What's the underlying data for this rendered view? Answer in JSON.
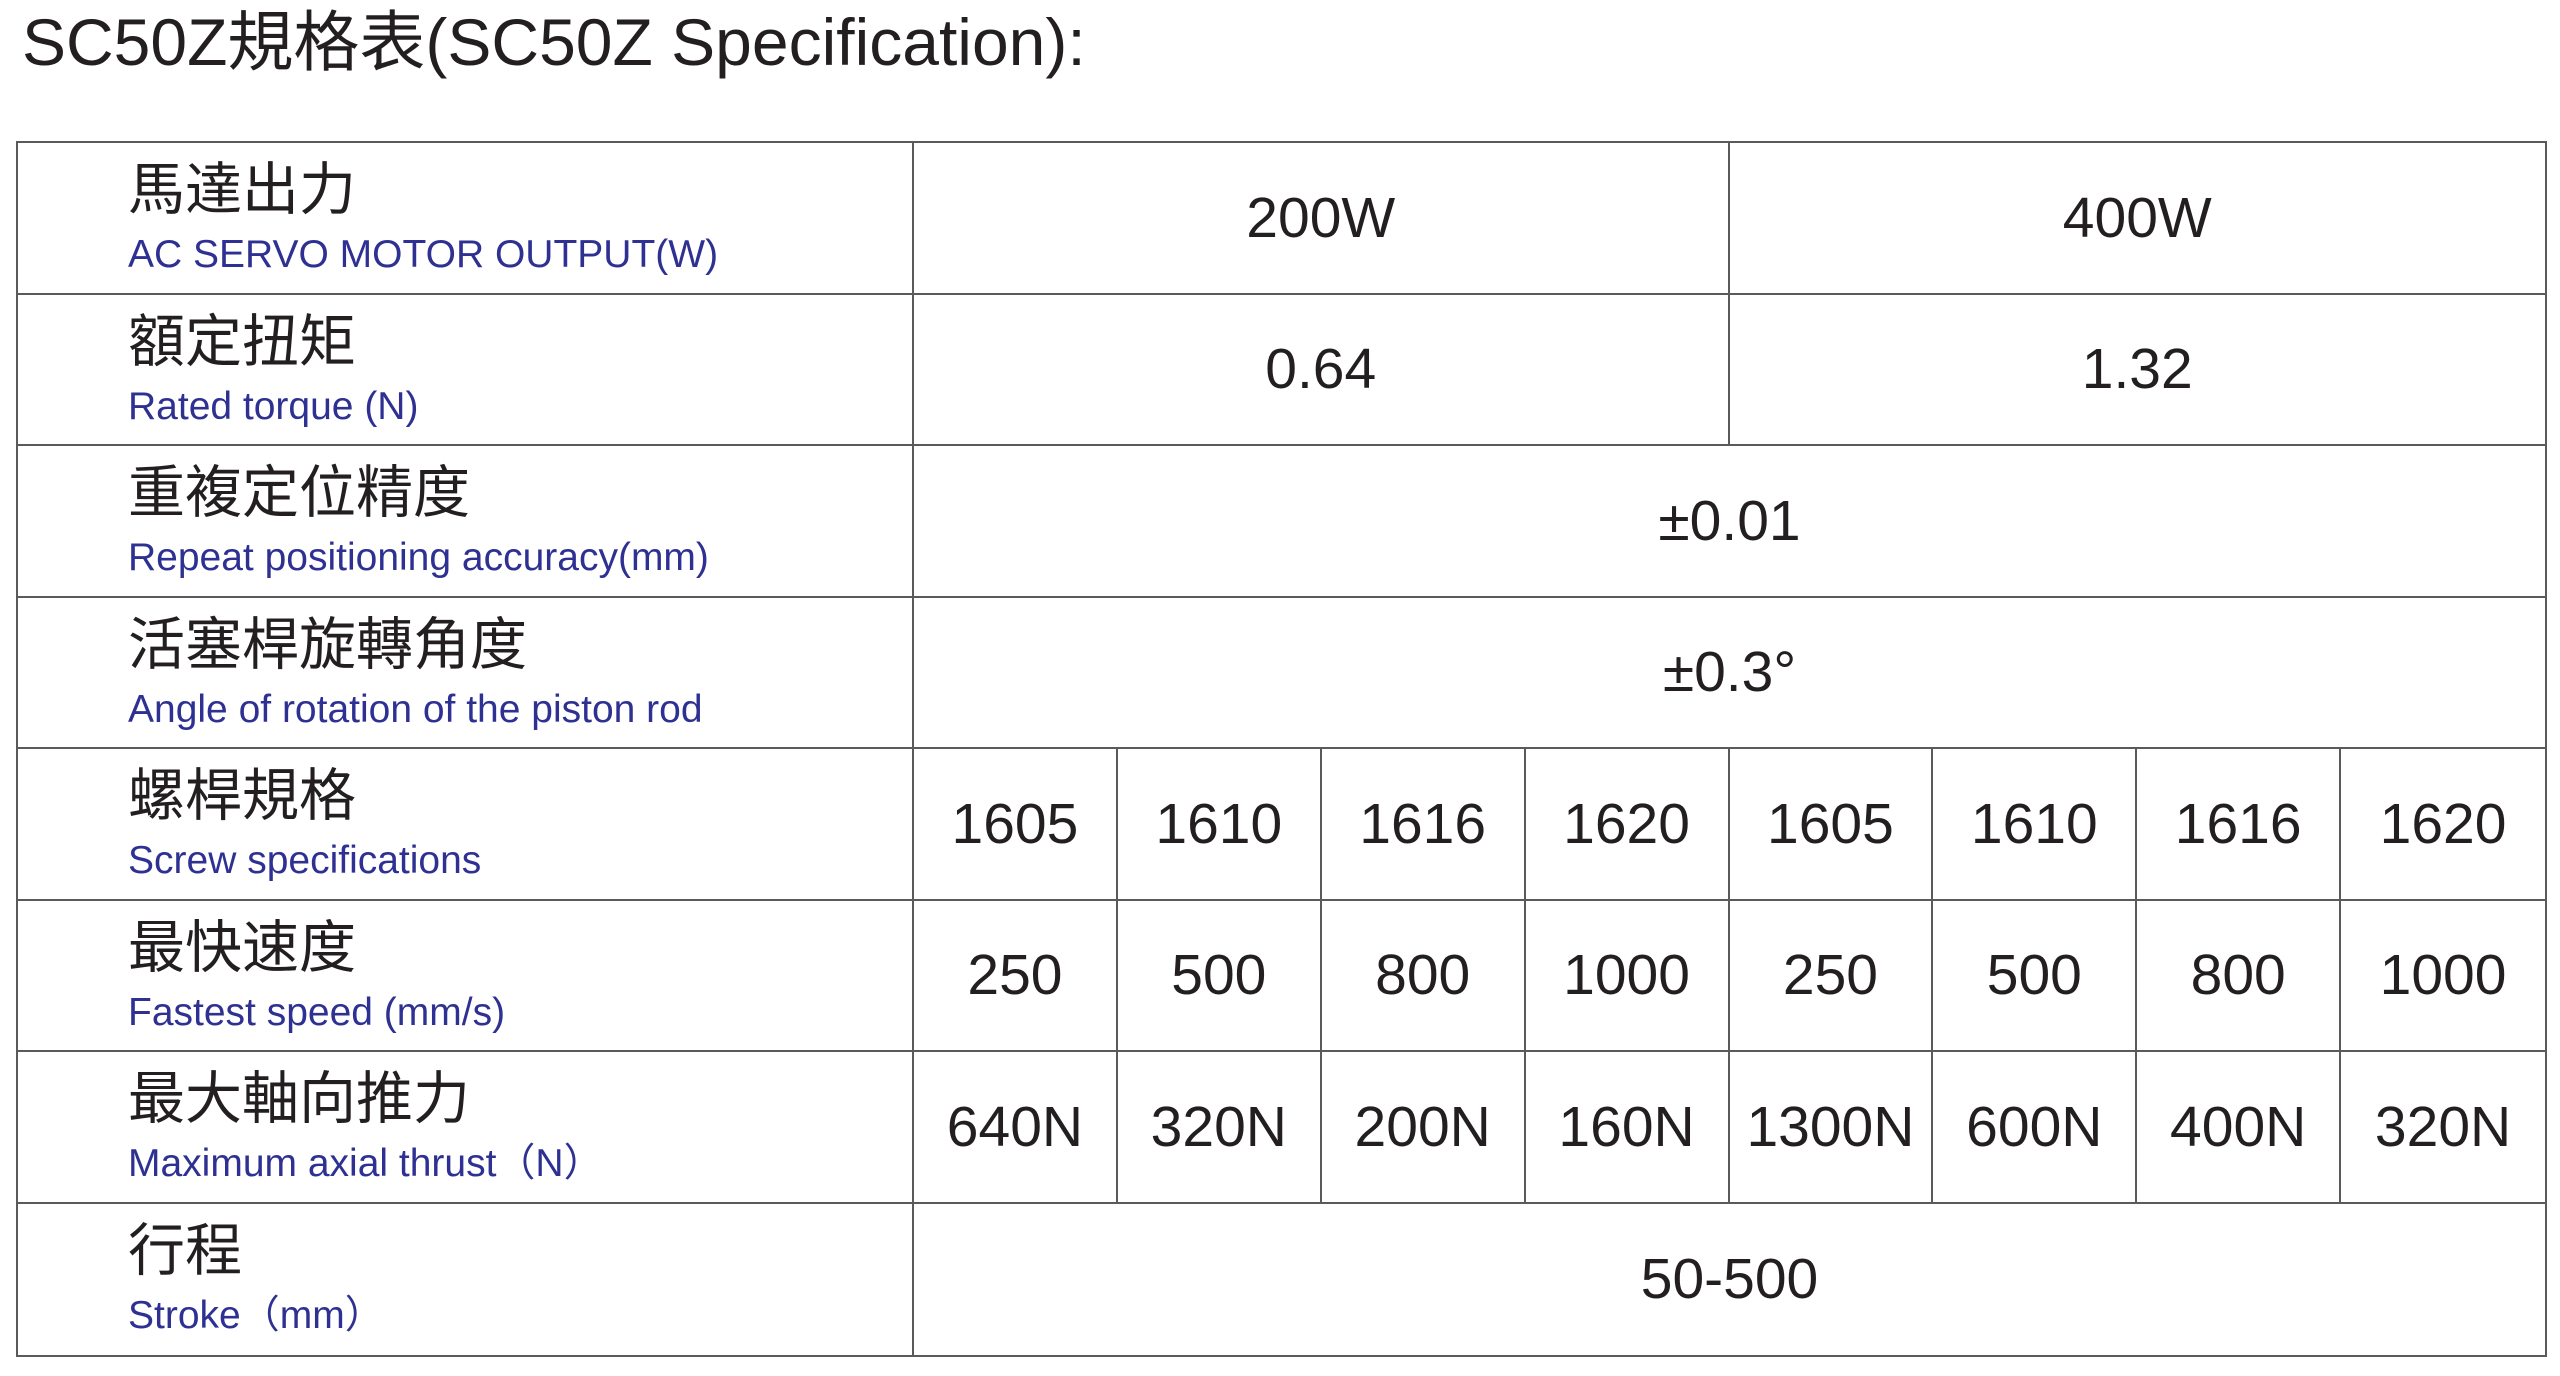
{
  "title": "SC50Z規格表(SC50Z Specification):",
  "table": {
    "rows": [
      {
        "zh": "馬達出力",
        "en": "AC SERVO MOTOR OUTPUT(W)",
        "values": [
          "200W",
          "400W"
        ]
      },
      {
        "zh": "額定扭矩",
        "en": "Rated torque  (N)",
        "values": [
          "0.64",
          "1.32"
        ]
      },
      {
        "zh": "重複定位精度",
        "en": "Repeat positioning accuracy(mm)",
        "values": [
          "±0.01"
        ]
      },
      {
        "zh": "活塞桿旋轉角度",
        "en": "Angle of rotation of the piston rod",
        "values": [
          "±0.3°"
        ]
      },
      {
        "zh": "螺桿規格",
        "en": "Screw specifications",
        "values": [
          "1605",
          "1610",
          "1616",
          "1620",
          "1605",
          "1610",
          "1616",
          "1620"
        ]
      },
      {
        "zh": "最快速度",
        "en": "Fastest speed (mm/s)",
        "values": [
          "250",
          "500",
          "800",
          "1000",
          "250",
          "500",
          "800",
          "1000"
        ]
      },
      {
        "zh": "最大軸向推力",
        "en": "Maximum axial thrust（N）",
        "values": [
          "640N",
          "320N",
          "200N",
          "160N",
          "1300N",
          "600N",
          "400N",
          "320N"
        ]
      },
      {
        "zh": "行程",
        "en": "Stroke（mm）",
        "values": [
          "50-500"
        ]
      }
    ]
  }
}
